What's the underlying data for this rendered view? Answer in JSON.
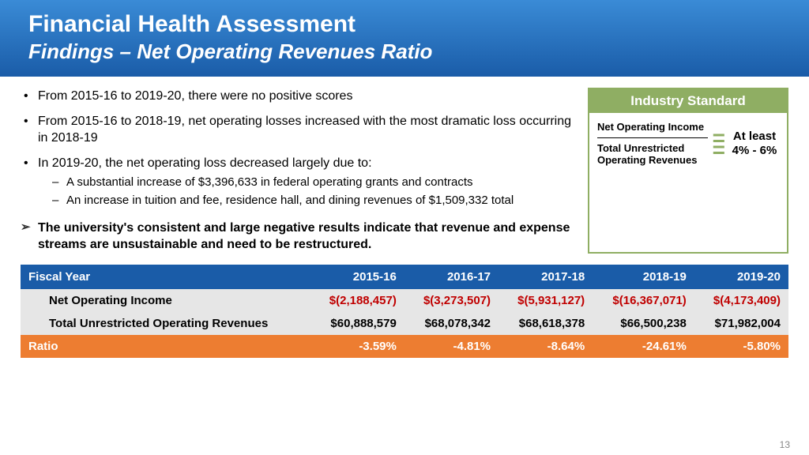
{
  "header": {
    "title": "Financial Health Assessment",
    "subtitle": "Findings – Net Operating Revenues Ratio",
    "bg_start": "#3a8bd6",
    "bg_end": "#1a5ca8"
  },
  "bullets": {
    "b1": "From 2015-16 to 2019-20, there were no positive scores",
    "b2": "From 2015-16 to 2018-19, net operating losses increased with the most dramatic loss occurring in 2018-19",
    "b3": "In 2019-20, the net operating loss decreased largely due to:",
    "b3a": "A substantial increase of $3,396,633 in federal operating grants and contracts",
    "b3b": "An increase in tuition and fee, residence hall, and dining revenues of $1,509,332 total",
    "conclusion": "The university's consistent and large negative results indicate that revenue and expense streams are unsustainable and need to be restructured."
  },
  "standard": {
    "header": "Industry Standard",
    "numerator": "Net Operating Income",
    "denominator": "Total Unrestricted Operating Revenues",
    "target": "At least 4% - 6%",
    "border_color": "#8fae63"
  },
  "table": {
    "header_bg": "#1a5ca8",
    "row_bg": "#e6e6e6",
    "ratio_bg": "#ed7d31",
    "neg_color": "#c00000",
    "columns": [
      "Fiscal Year",
      "2015-16",
      "2016-17",
      "2017-18",
      "2018-19",
      "2019-20"
    ],
    "rows": [
      {
        "label": "Net Operating Income",
        "cells": [
          "$(2,188,457)",
          "$(3,273,507)",
          "$(5,931,127)",
          "$(16,367,071)",
          "$(4,173,409)"
        ],
        "neg": true
      },
      {
        "label": "Total Unrestricted Operating Revenues",
        "cells": [
          "$60,888,579",
          "$68,078,342",
          "$68,618,378",
          "$66,500,238",
          "$71,982,004"
        ],
        "neg": false
      }
    ],
    "ratio": {
      "label": "Ratio",
      "cells": [
        "-3.59%",
        "-4.81%",
        "-8.64%",
        "-24.61%",
        "-5.80%"
      ]
    }
  },
  "page_number": "13"
}
